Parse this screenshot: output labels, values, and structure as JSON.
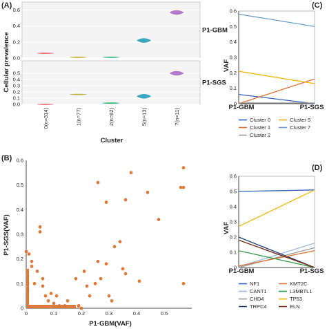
{
  "figure": {
    "panels": [
      "(A)",
      "(B)",
      "(C)",
      "(D)"
    ]
  },
  "chart_data": [
    {
      "panel": "(A)",
      "type": "violin",
      "xlabel": "Cluster",
      "ylabel": "Cellular prevalence",
      "categories": [
        "0(n=314)",
        "1(n=77)",
        "2(n=62)",
        "5(n=13)",
        "7(n=11)"
      ],
      "category_colors": [
        "#e8707f",
        "#b8b23c",
        "#3cb27a",
        "#3aa7c0",
        "#b27ac8"
      ],
      "ylim": [
        0,
        0.7
      ],
      "yticks": [
        "0.0",
        "0.1",
        "0.2",
        "0.3",
        "0.4",
        "0.5",
        "0.6",
        "0.7"
      ],
      "series": [
        {
          "name": "P1-GBM",
          "values": [
            0.06,
            0.01,
            0.01,
            0.22,
            0.57
          ]
        },
        {
          "name": "P1-SGS",
          "values": [
            0.0,
            0.16,
            0.02,
            0.13,
            0.5
          ]
        }
      ]
    },
    {
      "panel": "(B)",
      "type": "scatter",
      "xlabel": "P1-GBM(VAF)",
      "ylabel": "P1-SGS(VAF)",
      "xlim": [
        0,
        0.6
      ],
      "ylim": [
        0,
        0.6
      ],
      "xticks": [
        "0",
        "0.1",
        "0.2",
        "0.3",
        "0.4",
        "0.5"
      ],
      "yticks": [
        "0",
        "0.1",
        "0.2",
        "0.3",
        "0.4",
        "0.5",
        "0.6"
      ],
      "color": "#de7a38",
      "points": [
        [
          0.57,
          0.57
        ],
        [
          0.38,
          0.55
        ],
        [
          0.56,
          0.49
        ],
        [
          0.57,
          0.49
        ],
        [
          0.26,
          0.51
        ],
        [
          0.44,
          0.47
        ],
        [
          0.29,
          0.43
        ],
        [
          0.36,
          0.44
        ],
        [
          0.48,
          0.36
        ],
        [
          0.34,
          0.27
        ],
        [
          0.32,
          0.25
        ],
        [
          0.26,
          0.19
        ],
        [
          0.29,
          0.18
        ],
        [
          0.35,
          0.16
        ],
        [
          0.36,
          0.14
        ],
        [
          0.25,
          0.1
        ],
        [
          0.27,
          0.12
        ],
        [
          0.21,
          0.15
        ],
        [
          0.18,
          0.12
        ],
        [
          0.22,
          0.09
        ],
        [
          0.23,
          0.05
        ],
        [
          0.3,
          0.05
        ],
        [
          0.31,
          0.03
        ],
        [
          0.41,
          0.11
        ],
        [
          0.57,
          0.1
        ],
        [
          0.09,
          0.06
        ],
        [
          0.07,
          0.05
        ],
        [
          0.12,
          0.01
        ],
        [
          0.05,
          0.33
        ],
        [
          0.05,
          0.31
        ],
        [
          0.01,
          0.22
        ],
        [
          0.0,
          0.23
        ],
        [
          0.02,
          0.19
        ],
        [
          0.02,
          0.17
        ],
        [
          0.04,
          0.15
        ],
        [
          0.06,
          0.09
        ],
        [
          0.08,
          0.03
        ],
        [
          0.1,
          0.02
        ],
        [
          0.14,
          0.01
        ],
        [
          0.19,
          0.01
        ],
        [
          0.2,
          0.0
        ],
        [
          0.15,
          0.03
        ],
        [
          0.11,
          0.05
        ],
        [
          0.06,
          0.12
        ],
        [
          0.03,
          0.1
        ],
        [
          0.005,
          0.13
        ],
        [
          0.005,
          0.1
        ],
        [
          0.005,
          0.07
        ]
      ]
    },
    {
      "panel": "(C)",
      "type": "line",
      "xlabel": "",
      "ylabel": "VAF",
      "categories": [
        "P1-GBM",
        "P1-SGS"
      ],
      "ylim": [
        0,
        0.6
      ],
      "yticks": [
        "0",
        "0.1",
        "0.2",
        "0.3",
        "0.4",
        "0.5",
        "0.6"
      ],
      "legend": "bottom",
      "series": [
        {
          "name": "Cluster 0",
          "color": "#3060b8",
          "values": [
            0.06,
            0.0
          ]
        },
        {
          "name": "Cluster 1",
          "color": "#e07030",
          "values": [
            0.0,
            0.16
          ]
        },
        {
          "name": "Cluster 2",
          "color": "#9a9a9a",
          "values": [
            0.005,
            0.005
          ]
        },
        {
          "name": "Cluster 5",
          "color": "#f2b400",
          "values": [
            0.21,
            0.13
          ]
        },
        {
          "name": "Cluster 7",
          "color": "#6a9cd0",
          "values": [
            0.58,
            0.5
          ]
        }
      ]
    },
    {
      "panel": "(D)",
      "type": "line",
      "xlabel": "",
      "ylabel": "VAF",
      "categories": [
        "P1-GBM",
        "P1-SGS"
      ],
      "ylim": [
        0,
        0.6
      ],
      "yticks": [
        "0",
        "0.1",
        "0.2",
        "0.3",
        "0.4",
        "0.5",
        "0.6"
      ],
      "legend": "bottom",
      "series": [
        {
          "name": "NF1",
          "color": "#3060b8",
          "values": [
            0.5,
            0.51
          ]
        },
        {
          "name": "CANT1",
          "color": "#a0b8e0",
          "values": [
            0.005,
            0.16
          ]
        },
        {
          "name": "CHD4",
          "color": "#9a9a9a",
          "values": [
            0.0,
            0.13
          ]
        },
        {
          "name": "TRPC4",
          "color": "#1f3f7a",
          "values": [
            0.2,
            0.0
          ]
        },
        {
          "name": "KMT2C",
          "color": "#e07030",
          "values": [
            0.01,
            0.11
          ]
        },
        {
          "name": "L3MBTL1",
          "color": "#2e9a4a",
          "values": [
            0.11,
            0.0
          ]
        },
        {
          "name": "TP53",
          "color": "#f2b400",
          "values": [
            0.27,
            0.51
          ]
        },
        {
          "name": "ELN",
          "color": "#7a2a10",
          "values": [
            0.18,
            0.0
          ]
        }
      ]
    }
  ]
}
